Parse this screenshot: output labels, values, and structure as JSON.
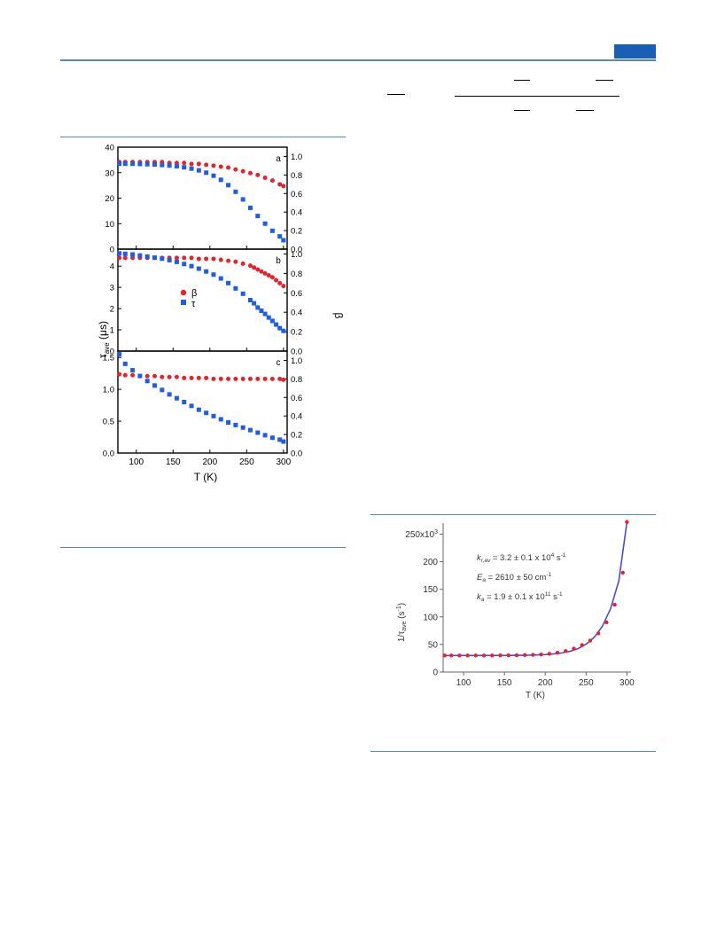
{
  "page": {
    "accent_color": "#1a5fb4",
    "rule_color": "#5a86b4"
  },
  "figure_left": {
    "x_axis_label": "T (K)",
    "left_axis_label": "τ",
    "left_axis_label_sub": "ave",
    "left_axis_label_unit": " (μs)",
    "right_axis_label": "β",
    "legend": [
      {
        "symbol": "circle",
        "label": "β",
        "color": "#e8222b"
      },
      {
        "symbol": "square",
        "label": "τ",
        "color": "#1f5de6"
      }
    ],
    "x_ticks": [
      "100",
      "150",
      "200",
      "250",
      "300"
    ]
  },
  "figure_right": {
    "x_axis_label": "T (K)",
    "y_axis_label_prefix": "1/τ",
    "y_axis_label_sub": "ave",
    "y_axis_label_unit": " (s",
    "y_axis_label_sup": "-1",
    "y_axis_label_close": ")",
    "annotations": [
      {
        "sym": "k",
        "sub": "r,av",
        "text": " = 3.2 ± 0.1 x 10",
        "sup": "4",
        "unit": " s",
        "unit_sup": "-1"
      },
      {
        "sym": "E",
        "sub": "a",
        "text": " = 2610 ± 50 cm",
        "sup": "",
        "unit": "",
        "unit_sup": "-1"
      },
      {
        "sym": "k",
        "sub": "a",
        "text": " = 1.9 ± 0.1 x 10",
        "sup": "11",
        "unit": " s",
        "unit_sup": "-1"
      }
    ]
  },
  "chart_data": [
    {
      "type": "scatter",
      "panel": "a",
      "xlabel": "T (K)",
      "ylabel": "τave (μs)",
      "y2label": "β",
      "xlim": [
        75,
        305
      ],
      "ylim": [
        0,
        40
      ],
      "y2lim": [
        0,
        1.1
      ],
      "yticks": [
        0,
        10,
        20,
        30,
        40
      ],
      "y2ticks": [
        "0.0",
        "0.2",
        "0.4",
        "0.6",
        "0.8",
        "1.0"
      ],
      "series": [
        {
          "name": "β",
          "axis": "right",
          "marker": "circle",
          "color": "#e8222b",
          "x": [
            77,
            85,
            95,
            105,
            115,
            125,
            135,
            145,
            155,
            165,
            175,
            185,
            195,
            205,
            215,
            225,
            235,
            245,
            255,
            265,
            275,
            285,
            295,
            300
          ],
          "y": [
            0.94,
            0.94,
            0.94,
            0.94,
            0.94,
            0.94,
            0.94,
            0.93,
            0.93,
            0.93,
            0.92,
            0.92,
            0.91,
            0.9,
            0.89,
            0.88,
            0.86,
            0.84,
            0.82,
            0.8,
            0.77,
            0.74,
            0.7,
            0.68
          ]
        },
        {
          "name": "τ",
          "axis": "left",
          "marker": "square",
          "color": "#1f5de6",
          "x": [
            77,
            85,
            95,
            105,
            115,
            125,
            135,
            145,
            155,
            165,
            175,
            185,
            195,
            205,
            215,
            225,
            235,
            245,
            255,
            265,
            275,
            285,
            295,
            300
          ],
          "y": [
            33.5,
            33.5,
            33.5,
            33.4,
            33.3,
            33.2,
            33.0,
            32.8,
            32.5,
            32.1,
            31.6,
            30.9,
            30.0,
            28.8,
            27.2,
            25.1,
            22.5,
            19.5,
            16.2,
            13.0,
            10.0,
            7.2,
            5.0,
            3.5
          ]
        }
      ]
    },
    {
      "type": "scatter",
      "panel": "b",
      "xlabel": "T (K)",
      "ylabel": "τave (μs)",
      "y2label": "β",
      "xlim": [
        75,
        305
      ],
      "ylim": [
        0,
        4.8
      ],
      "y2lim": [
        0,
        1.05
      ],
      "yticks": [
        0,
        1,
        2,
        3,
        4
      ],
      "y2ticks": [
        "0.0",
        "0.2",
        "0.4",
        "0.6",
        "0.8",
        "1.0"
      ],
      "series": [
        {
          "name": "β",
          "axis": "right",
          "marker": "circle",
          "color": "#e8222b",
          "x": [
            77,
            85,
            95,
            105,
            115,
            125,
            135,
            145,
            155,
            165,
            175,
            185,
            195,
            205,
            215,
            225,
            235,
            245,
            255,
            260,
            265,
            270,
            275,
            280,
            285,
            290,
            295,
            300
          ],
          "y": [
            0.96,
            0.96,
            0.96,
            0.96,
            0.96,
            0.96,
            0.96,
            0.96,
            0.96,
            0.96,
            0.96,
            0.95,
            0.95,
            0.95,
            0.94,
            0.93,
            0.92,
            0.9,
            0.88,
            0.86,
            0.84,
            0.82,
            0.8,
            0.78,
            0.76,
            0.73,
            0.7,
            0.67
          ]
        },
        {
          "name": "τ",
          "axis": "left",
          "marker": "square",
          "color": "#1f5de6",
          "x": [
            77,
            85,
            95,
            105,
            115,
            125,
            135,
            145,
            155,
            165,
            175,
            185,
            195,
            205,
            215,
            225,
            235,
            245,
            255,
            260,
            265,
            270,
            275,
            280,
            285,
            290,
            295,
            300
          ],
          "y": [
            4.6,
            4.58,
            4.55,
            4.5,
            4.45,
            4.4,
            4.35,
            4.28,
            4.2,
            4.1,
            4.0,
            3.88,
            3.75,
            3.6,
            3.42,
            3.2,
            2.95,
            2.7,
            2.4,
            2.25,
            2.05,
            1.9,
            1.75,
            1.58,
            1.42,
            1.25,
            1.08,
            0.95
          ]
        }
      ]
    },
    {
      "type": "scatter",
      "panel": "c",
      "xlabel": "T (K)",
      "ylabel": "τave (μs)",
      "y2label": "β",
      "xlim": [
        75,
        305
      ],
      "ylim": [
        0,
        1.6
      ],
      "y2lim": [
        0,
        1.1
      ],
      "yticks": [
        "0.0",
        "0.5",
        "1.0",
        "1.5"
      ],
      "y2ticks": [
        "0.0",
        "0.2",
        "0.4",
        "0.6",
        "0.8",
        "1.0"
      ],
      "series": [
        {
          "name": "β",
          "axis": "right",
          "marker": "circle",
          "color": "#e8222b",
          "x": [
            77,
            85,
            95,
            105,
            115,
            125,
            135,
            145,
            155,
            165,
            175,
            185,
            195,
            205,
            215,
            225,
            235,
            245,
            255,
            265,
            275,
            285,
            295,
            300
          ],
          "y": [
            0.85,
            0.84,
            0.84,
            0.83,
            0.83,
            0.83,
            0.82,
            0.82,
            0.82,
            0.81,
            0.81,
            0.81,
            0.81,
            0.8,
            0.8,
            0.8,
            0.8,
            0.8,
            0.8,
            0.8,
            0.8,
            0.8,
            0.8,
            0.79
          ]
        },
        {
          "name": "τ",
          "axis": "left",
          "marker": "square",
          "color": "#1f5de6",
          "x": [
            77,
            85,
            95,
            105,
            115,
            125,
            135,
            145,
            155,
            165,
            175,
            185,
            195,
            205,
            215,
            225,
            235,
            245,
            255,
            265,
            275,
            285,
            295,
            300
          ],
          "y": [
            1.55,
            1.4,
            1.3,
            1.21,
            1.13,
            1.06,
            0.99,
            0.92,
            0.86,
            0.8,
            0.74,
            0.68,
            0.63,
            0.58,
            0.53,
            0.48,
            0.44,
            0.4,
            0.36,
            0.32,
            0.28,
            0.24,
            0.21,
            0.18
          ]
        }
      ]
    },
    {
      "type": "scatter",
      "xlabel": "T (K)",
      "ylabel": "1/τave (s-1)",
      "xlim": [
        75,
        305
      ],
      "ylim": [
        0,
        270000
      ],
      "xticks": [
        100,
        150,
        200,
        250,
        300
      ],
      "yticks": [
        "0",
        "50",
        "100",
        "150",
        "200",
        "250x10"
      ],
      "ytick_top_sup": "3",
      "series": [
        {
          "name": "data",
          "marker": "circle",
          "color": "#e8222b",
          "x": [
            77,
            85,
            95,
            105,
            115,
            125,
            135,
            145,
            155,
            165,
            175,
            185,
            195,
            205,
            215,
            225,
            235,
            245,
            255,
            265,
            275,
            285,
            295,
            300
          ],
          "y": [
            30000,
            30000,
            30000,
            30000,
            30000,
            30000,
            30100,
            30200,
            30300,
            30500,
            30800,
            31200,
            31800,
            33000,
            35000,
            38000,
            42500,
            49000,
            57000,
            70000,
            90000,
            122000,
            180000,
            272000
          ]
        },
        {
          "name": "fit",
          "marker": "line",
          "color": "#4a4ad6",
          "x": [
            77,
            90,
            100,
            110,
            120,
            130,
            140,
            150,
            160,
            170,
            180,
            190,
            200,
            210,
            220,
            230,
            240,
            250,
            260,
            270,
            280,
            290,
            300
          ],
          "y": [
            30000,
            30000,
            30000,
            30000,
            30000,
            30000,
            30050,
            30100,
            30200,
            30350,
            30600,
            31000,
            31700,
            32800,
            34500,
            37500,
            42500,
            50500,
            63000,
            83000,
            115000,
            165000,
            272000
          ]
        }
      ]
    }
  ]
}
